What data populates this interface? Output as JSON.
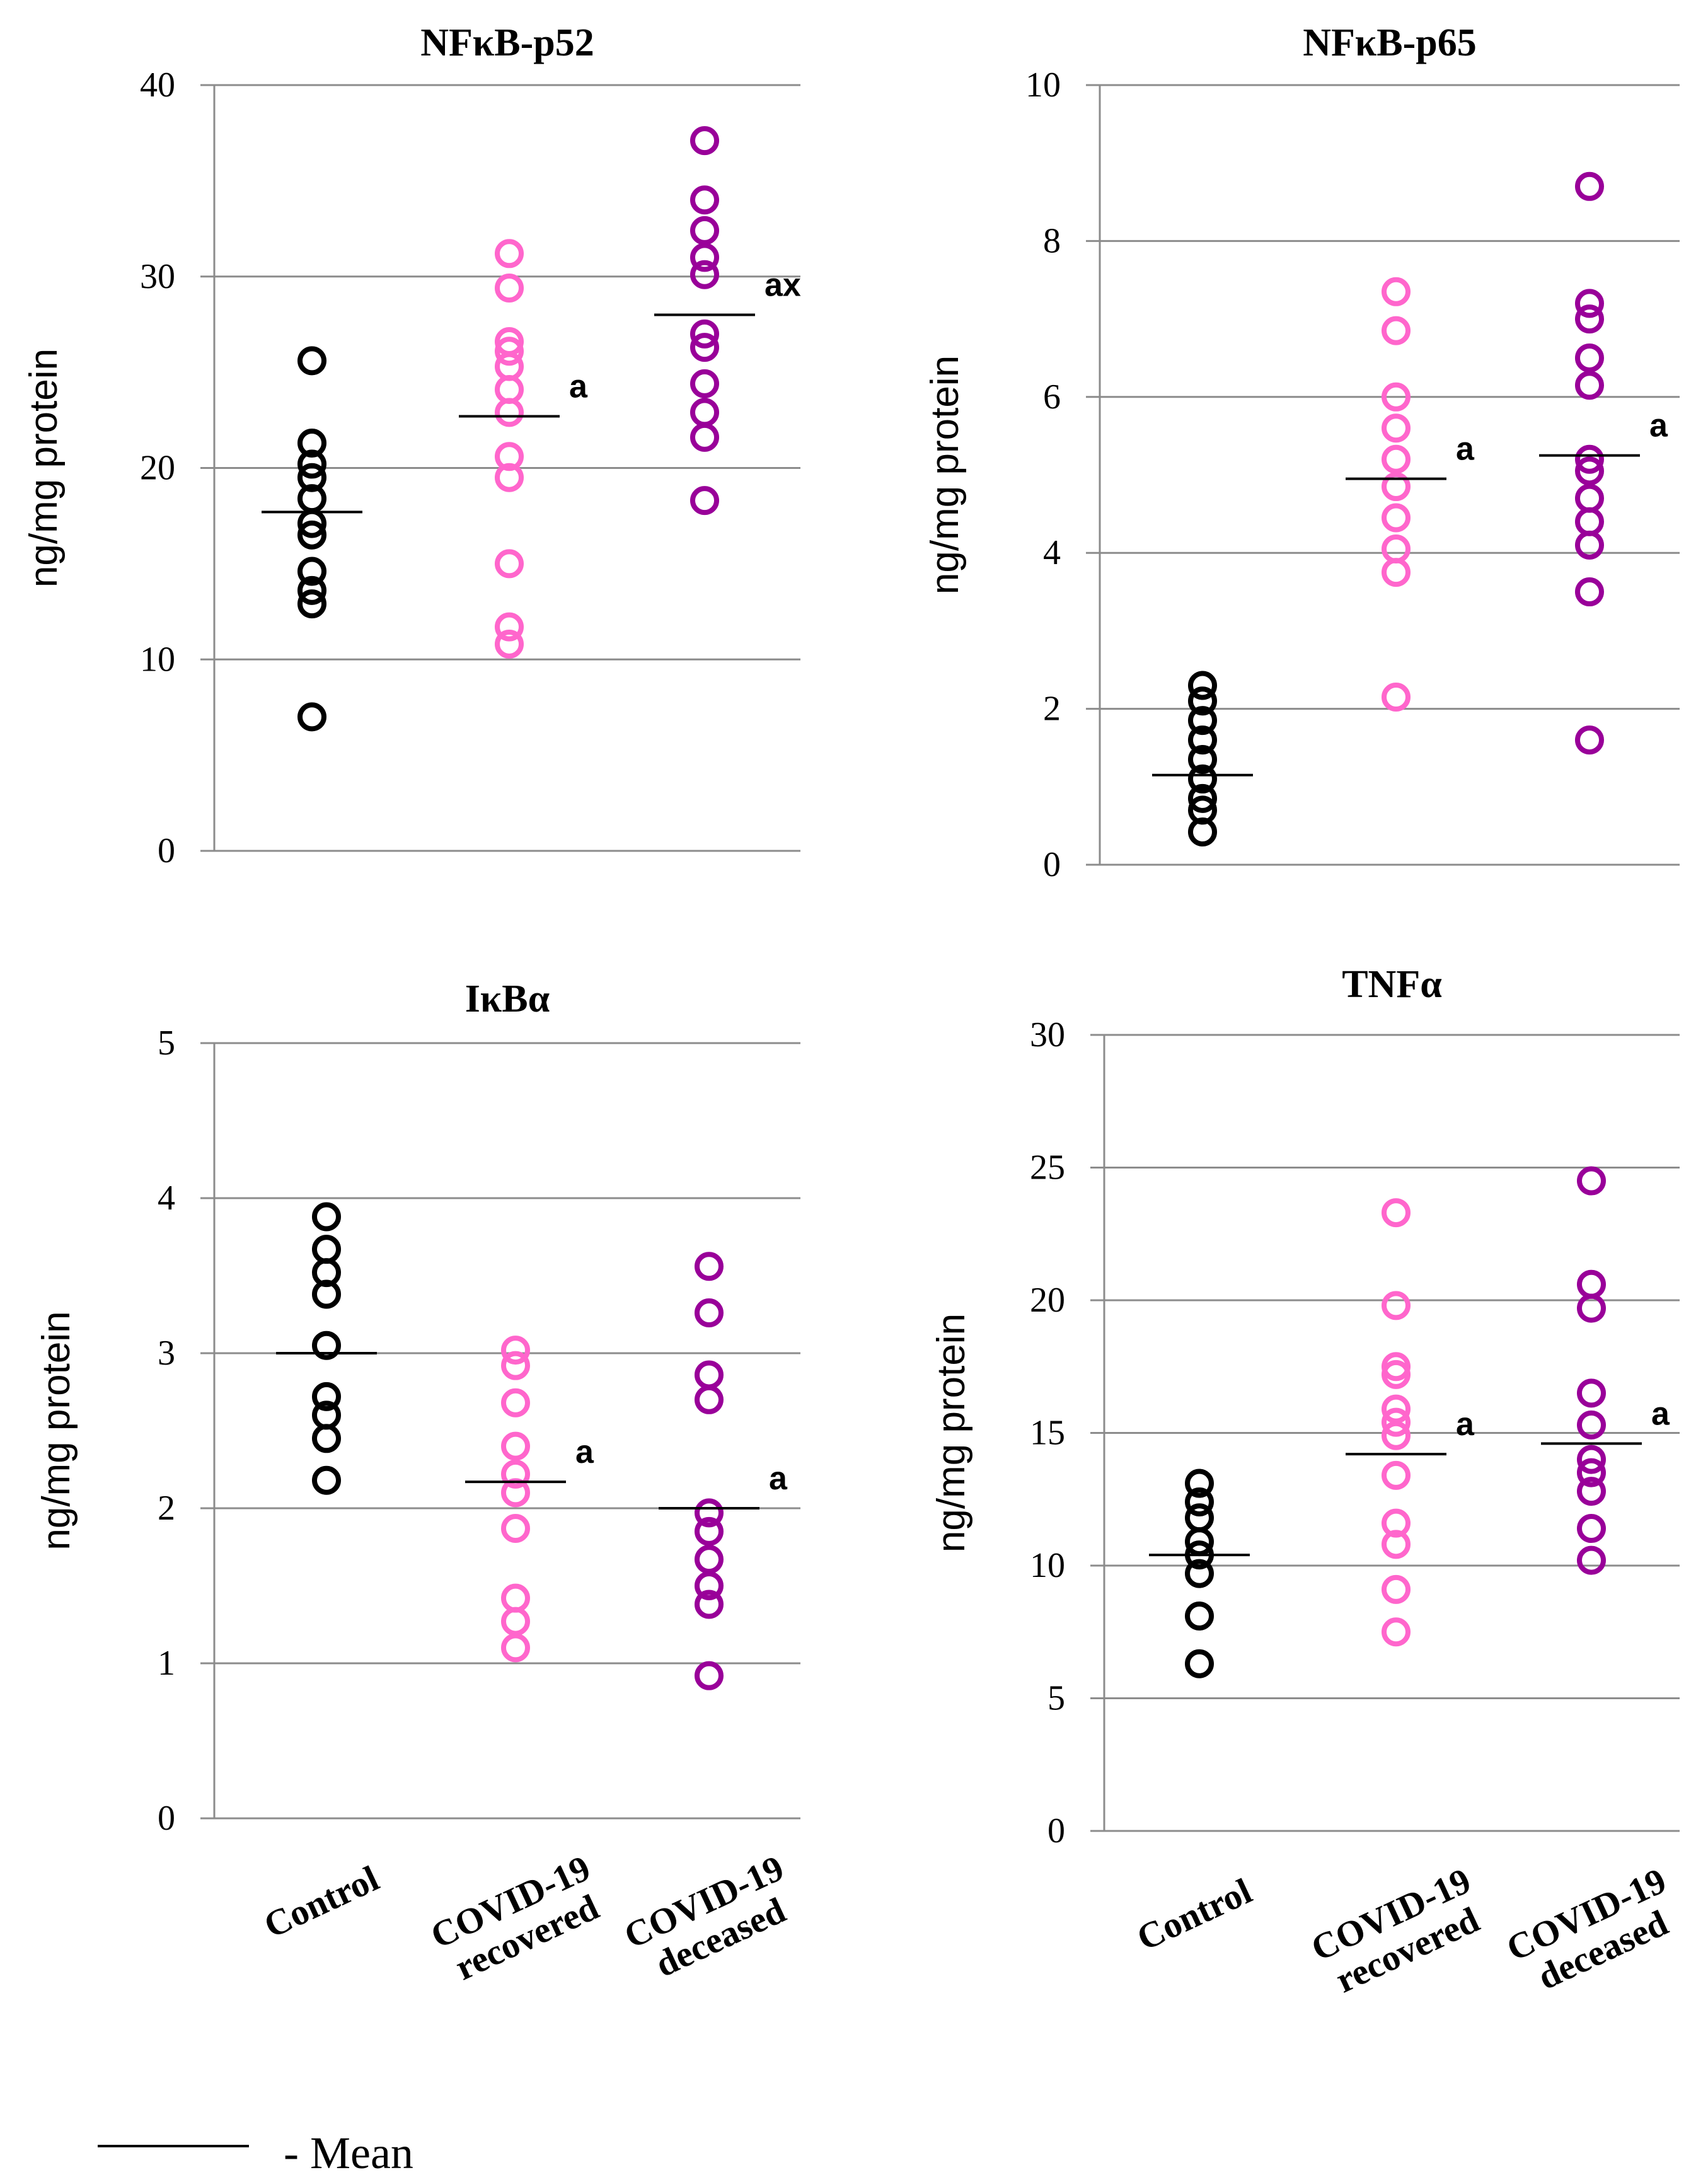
{
  "legend": {
    "label": "- Mean"
  },
  "chart_data": [
    {
      "type": "scatter",
      "title": "NFκB-p52",
      "ylabel": "ng/mg protein",
      "ylim": [
        0,
        40
      ],
      "yticks": [
        "0",
        "10",
        "20",
        "30",
        "40"
      ],
      "categories": [
        "Control",
        "COVID-19 recovered",
        "COVID-19 deceased"
      ],
      "series": [
        {
          "name": "Control",
          "color": "#000000",
          "values": [
            7.0,
            12.9,
            13.6,
            14.6,
            16.5,
            17.1,
            18.4,
            19.5,
            20.2,
            21.3,
            25.6
          ],
          "mean": 17.7,
          "sig": ""
        },
        {
          "name": "COVID-19 recovered",
          "color": "#ff66cc",
          "values": [
            10.8,
            11.7,
            15.0,
            19.5,
            20.6,
            22.9,
            24.1,
            25.3,
            26.1,
            26.6,
            29.4,
            31.2
          ],
          "mean": 22.7,
          "sig": "a"
        },
        {
          "name": "COVID-19 deceased",
          "color": "#990099",
          "values": [
            18.3,
            21.6,
            22.9,
            24.4,
            26.3,
            27.0,
            30.1,
            31.0,
            32.4,
            34.0,
            37.1
          ],
          "mean": 28.0,
          "sig": "ax"
        }
      ]
    },
    {
      "type": "scatter",
      "title": "NFκB-p65",
      "ylabel": "ng/mg protein",
      "ylim": [
        0,
        10
      ],
      "yticks": [
        "0",
        "2",
        "4",
        "6",
        "8",
        "10"
      ],
      "categories": [
        "Control",
        "COVID-19 recovered",
        "COVID-19 deceased"
      ],
      "series": [
        {
          "name": "Control",
          "color": "#000000",
          "values": [
            0.42,
            0.7,
            0.85,
            1.1,
            1.35,
            1.6,
            1.85,
            2.1,
            2.3
          ],
          "mean": 1.15,
          "sig": ""
        },
        {
          "name": "COVID-19 recovered",
          "color": "#ff66cc",
          "values": [
            2.15,
            3.75,
            4.05,
            4.45,
            4.85,
            5.2,
            5.6,
            6.0,
            6.85,
            7.35
          ],
          "mean": 4.95,
          "sig": "a"
        },
        {
          "name": "COVID-19 deceased",
          "color": "#990099",
          "values": [
            1.6,
            3.5,
            4.1,
            4.4,
            4.7,
            5.05,
            5.2,
            6.15,
            6.5,
            7.0,
            7.2,
            8.7
          ],
          "mean": 5.25,
          "sig": "a"
        }
      ]
    },
    {
      "type": "scatter",
      "title": "IκBα",
      "ylabel": "ng/mg protein",
      "ylim": [
        0,
        5
      ],
      "yticks": [
        "0",
        "1",
        "2",
        "3",
        "4",
        "5"
      ],
      "categories": [
        "Control",
        "COVID-19 recovered",
        "COVID-19 deceased"
      ],
      "series": [
        {
          "name": "Control",
          "color": "#000000",
          "values": [
            2.18,
            2.45,
            2.6,
            2.72,
            3.05,
            3.38,
            3.52,
            3.67,
            3.88
          ],
          "mean": 3.0,
          "sig": ""
        },
        {
          "name": "COVID-19 recovered",
          "color": "#ff66cc",
          "values": [
            1.1,
            1.27,
            1.42,
            1.87,
            2.1,
            2.22,
            2.4,
            2.68,
            2.92,
            3.02
          ],
          "mean": 2.17,
          "sig": "a"
        },
        {
          "name": "COVID-19 deceased",
          "color": "#990099",
          "values": [
            0.92,
            1.38,
            1.5,
            1.67,
            1.85,
            1.97,
            2.7,
            2.86,
            3.26,
            3.56
          ],
          "mean": 2.0,
          "sig": "a"
        }
      ]
    },
    {
      "type": "scatter",
      "title": "TNFα",
      "ylabel": "ng/mg protein",
      "ylim": [
        0,
        30
      ],
      "yticks": [
        "0",
        "5",
        "10",
        "15",
        "20",
        "25",
        "30"
      ],
      "categories": [
        "Control",
        "COVID-19 recovered",
        "COVID-19 deceased"
      ],
      "series": [
        {
          "name": "Control",
          "color": "#000000",
          "values": [
            6.3,
            8.1,
            9.7,
            10.4,
            10.9,
            11.8,
            12.4,
            13.1
          ],
          "mean": 10.4,
          "sig": ""
        },
        {
          "name": "COVID-19 recovered",
          "color": "#ff66cc",
          "values": [
            7.5,
            9.1,
            10.8,
            11.6,
            13.4,
            14.9,
            15.4,
            15.9,
            17.2,
            17.5,
            19.8,
            23.3
          ],
          "mean": 14.2,
          "sig": "a"
        },
        {
          "name": "COVID-19 deceased",
          "color": "#990099",
          "values": [
            10.2,
            11.4,
            12.8,
            13.5,
            14.0,
            15.3,
            16.5,
            19.7,
            20.6,
            24.5
          ],
          "mean": 14.6,
          "sig": "a"
        }
      ]
    }
  ]
}
